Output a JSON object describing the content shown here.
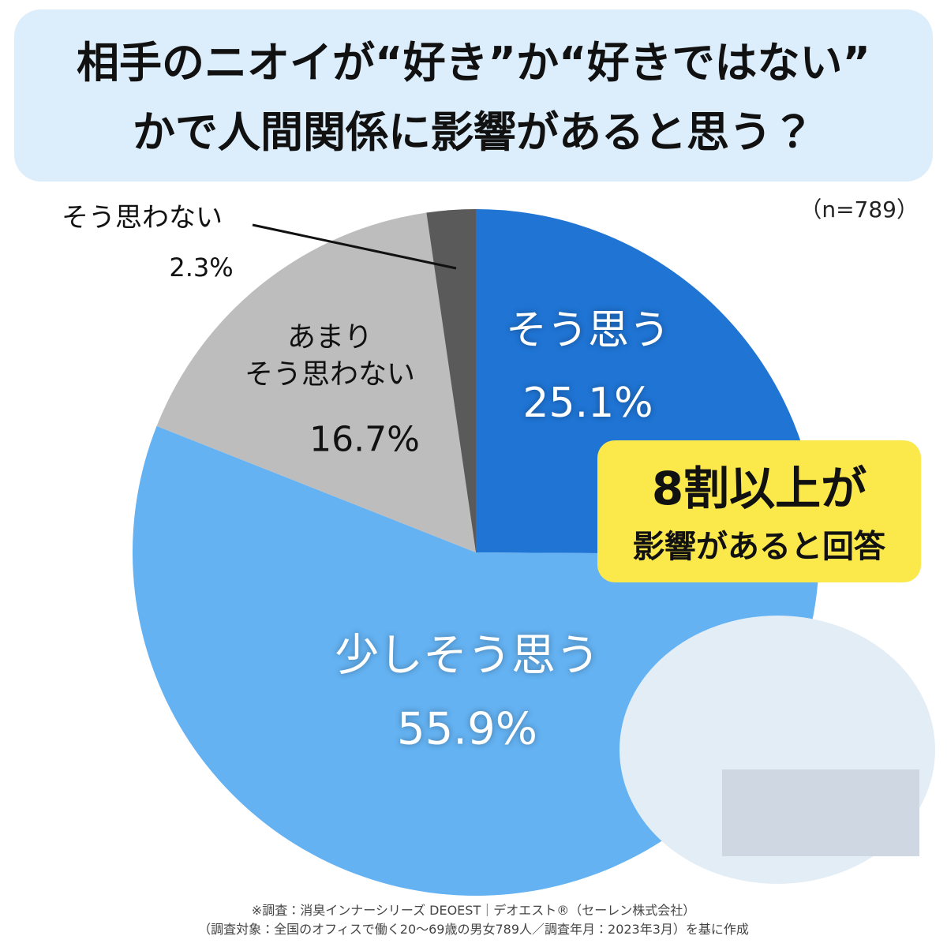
{
  "chart_data": {
    "type": "pie",
    "title": "相手のニオイが“好き”か“好きではない”\nかで人間関係に影響があると思う？",
    "sample_note": "（n=789）",
    "categories": [
      "そう思う",
      "少しそう思う",
      "あまり\nそう思わない",
      "そう思わない"
    ],
    "values": [
      25.1,
      55.9,
      16.7,
      2.3
    ],
    "value_labels": [
      "25.1%",
      "55.9%",
      "16.7%",
      "2.3%"
    ],
    "colors": [
      "#1f74d4",
      "#64b2f2",
      "#bdbdbd",
      "#5a5a5a"
    ],
    "callout": [
      "8割以上が",
      "影響があると回答"
    ],
    "notes": "※調査：消臭インナーシリーズ DEOEST｜デオエスト®（セーレン株式会社）\n（調査対象：全国のオフィスで働く20～69歳の男女789人／調査年月：2023年3月）を基に作成"
  }
}
